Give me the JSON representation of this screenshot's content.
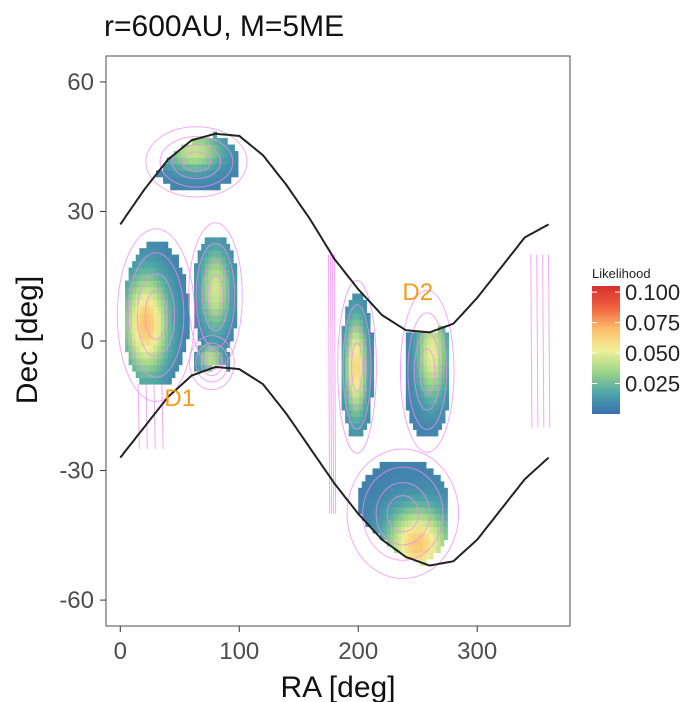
{
  "chart_data": {
    "type": "heatmap",
    "title": "r=600AU, M=5ME",
    "xlabel": "RA [deg]",
    "ylabel": "Dec [deg]",
    "xlim": [
      -12,
      378
    ],
    "ylim": [
      -66,
      66
    ],
    "x_ticks": [
      0,
      100,
      200,
      300
    ],
    "y_ticks": [
      -60,
      -30,
      0,
      30,
      60
    ],
    "x_tick_labels": [
      "0",
      "100",
      "200",
      "300"
    ],
    "y_tick_labels": [
      "-60",
      "-30",
      "0",
      "30",
      "60"
    ],
    "grid": false,
    "colorbar": {
      "title": "Likelihood",
      "range": [
        0,
        0.105
      ],
      "ticks": [
        0.025,
        0.05,
        0.075,
        0.1
      ],
      "tick_labels": [
        "0.025",
        "0.050",
        "0.075",
        "0.100"
      ],
      "colors": [
        "#3a6fb0",
        "#4fa6a8",
        "#9fd68a",
        "#f2ef98",
        "#fdbc6a",
        "#f0603f",
        "#d7302d"
      ],
      "placement": "right"
    },
    "boundary_curves": {
      "description": "ecliptic band edges",
      "color": "#222222",
      "upper": {
        "x": [
          0,
          20,
          40,
          60,
          80,
          100,
          120,
          140,
          160,
          180,
          200,
          220,
          240,
          260,
          280,
          300,
          320,
          340,
          360
        ],
        "y": [
          27,
          35,
          42,
          46.5,
          48,
          47.5,
          43,
          36,
          28,
          19,
          12,
          6,
          2.5,
          2,
          4,
          10,
          17,
          24,
          27
        ]
      },
      "lower": {
        "x": [
          0,
          20,
          40,
          60,
          80,
          100,
          120,
          140,
          160,
          180,
          200,
          220,
          240,
          260,
          280,
          300,
          320,
          340,
          360
        ],
        "y": [
          -27,
          -20,
          -13,
          -8,
          -6,
          -6.5,
          -10,
          -17,
          -25,
          -33,
          -40,
          -46,
          -50,
          -52,
          -51,
          -46,
          -39,
          -32,
          -27
        ]
      }
    },
    "clusters": [
      {
        "x_range": [
          4,
          56
        ],
        "y_range": [
          -10,
          22
        ],
        "peak_x": 22,
        "peak_y": 4,
        "peak": 0.062
      },
      {
        "x_range": [
          62,
          98
        ],
        "y_range": [
          -3,
          24
        ],
        "peak_x": 80,
        "peak_y": 12,
        "peak": 0.04
      },
      {
        "x_range": [
          62,
          92
        ],
        "y_range": [
          -10,
          0
        ],
        "peak_x": 76,
        "peak_y": -4,
        "peak": 0.035
      },
      {
        "x_range": [
          30,
          98
        ],
        "y_range": [
          35,
          48
        ],
        "peak_x": 62,
        "peak_y": 44,
        "peak": 0.038
      },
      {
        "x_range": [
          186,
          212
        ],
        "y_range": [
          -22,
          10
        ],
        "peak_x": 198,
        "peak_y": -6,
        "peak": 0.055
      },
      {
        "x_range": [
          240,
          276
        ],
        "y_range": [
          -22,
          8
        ],
        "peak_x": 262,
        "peak_y": -3,
        "peak": 0.045
      },
      {
        "x_range": [
          200,
          275
        ],
        "y_range": [
          -52,
          -28
        ],
        "peak_x": 250,
        "peak_y": -47,
        "peak": 0.06
      }
    ],
    "contour_color": "#f08cf0",
    "annotations": [
      {
        "text": "D1",
        "x": 50,
        "y": -15
      },
      {
        "text": "D2",
        "x": 250,
        "y": 9.5
      }
    ]
  }
}
